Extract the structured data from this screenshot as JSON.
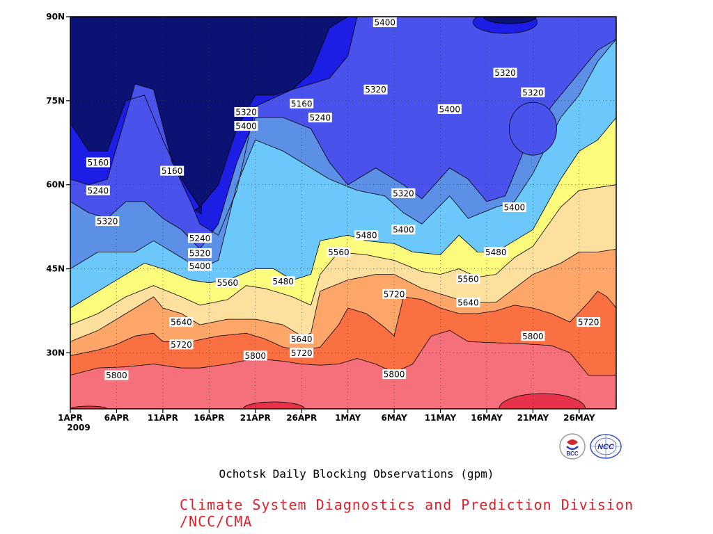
{
  "chart_data": {
    "type": "heatmap",
    "title": "Ochotsk Daily Blocking Observations (gpm)",
    "footer": "Climate System Diagnostics and Prediction Division /NCC/CMA",
    "footer_color": "#e0202a",
    "x_tick_labels": [
      "1APR",
      "6APR",
      "11APR",
      "16APR",
      "21APR",
      "26APR",
      "1MAY",
      "6MAY",
      "11MAY",
      "16MAY",
      "21MAY",
      "26MAY"
    ],
    "x_sub_label": "2009",
    "x_range": [
      "2009-04-01",
      "2009-05-30"
    ],
    "y_tick_labels": [
      "30N",
      "45N",
      "60N",
      "75N",
      "90N"
    ],
    "y_ticks": [
      30,
      45,
      60,
      75,
      90
    ],
    "y_range": [
      20,
      90
    ],
    "grid": true,
    "levels": [
      5160,
      5240,
      5320,
      5400,
      5480,
      5560,
      5640,
      5720,
      5800,
      5880
    ],
    "level_colors": [
      "#0b1274",
      "#1c1ee6",
      "#4a52ec",
      "#5b90e6",
      "#6cc8fb",
      "#fcfc7c",
      "#fde09e",
      "#fca66a",
      "#fb7042",
      "#f5707a",
      "#e8324a"
    ],
    "contour_labels": [
      {
        "text": "5400",
        "date": "2009-05-05",
        "lat": 89
      },
      {
        "text": "5160",
        "date": "2009-04-26",
        "lat": 74.5
      },
      {
        "text": "5320",
        "date": "2009-04-20",
        "lat": 73
      },
      {
        "text": "5240",
        "date": "2009-04-28",
        "lat": 72
      },
      {
        "text": "5400",
        "date": "2009-04-20",
        "lat": 70.5
      },
      {
        "text": "5320",
        "date": "2009-05-04",
        "lat": 77
      },
      {
        "text": "5400",
        "date": "2009-05-12",
        "lat": 73.5
      },
      {
        "text": "5320",
        "date": "2009-05-18",
        "lat": 80
      },
      {
        "text": "5320",
        "date": "2009-05-21",
        "lat": 76.5
      },
      {
        "text": "5160",
        "date": "2009-04-04",
        "lat": 64
      },
      {
        "text": "5160",
        "date": "2009-04-12",
        "lat": 62.5
      },
      {
        "text": "5240",
        "date": "2009-04-04",
        "lat": 59
      },
      {
        "text": "5320",
        "date": "2009-04-05",
        "lat": 53.5
      },
      {
        "text": "5320",
        "date": "2009-05-07",
        "lat": 58.5
      },
      {
        "text": "5400",
        "date": "2009-05-19",
        "lat": 56
      },
      {
        "text": "5400",
        "date": "2009-05-07",
        "lat": 52
      },
      {
        "text": "5240",
        "date": "2009-04-15",
        "lat": 50.5
      },
      {
        "text": "5320",
        "date": "2009-04-15",
        "lat": 47.8
      },
      {
        "text": "5400",
        "date": "2009-04-15",
        "lat": 45.5
      },
      {
        "text": "5480",
        "date": "2009-05-03",
        "lat": 51
      },
      {
        "text": "5560",
        "date": "2009-04-30",
        "lat": 48
      },
      {
        "text": "5480",
        "date": "2009-05-17",
        "lat": 48
      },
      {
        "text": "5560",
        "date": "2009-04-18",
        "lat": 42.5
      },
      {
        "text": "5480",
        "date": "2009-04-24",
        "lat": 42.8
      },
      {
        "text": "5560",
        "date": "2009-05-14",
        "lat": 43.2
      },
      {
        "text": "5720",
        "date": "2009-05-06",
        "lat": 40.5
      },
      {
        "text": "5640",
        "date": "2009-05-14",
        "lat": 39
      },
      {
        "text": "5640",
        "date": "2009-04-13",
        "lat": 35.5
      },
      {
        "text": "5720",
        "date": "2009-05-27",
        "lat": 35.5
      },
      {
        "text": "5640",
        "date": "2009-04-26",
        "lat": 32.5
      },
      {
        "text": "5720",
        "date": "2009-04-13",
        "lat": 31.5
      },
      {
        "text": "5800",
        "date": "2009-05-21",
        "lat": 33
      },
      {
        "text": "5720",
        "date": "2009-04-26",
        "lat": 30
      },
      {
        "text": "5800",
        "date": "2009-04-21",
        "lat": 29.5
      },
      {
        "text": "5800",
        "date": "2009-04-06",
        "lat": 26
      },
      {
        "text": "5800",
        "date": "2009-05-06",
        "lat": 26.2
      }
    ]
  },
  "logos": {
    "bcc_text": "BCC",
    "ncc_text": "NCC"
  }
}
